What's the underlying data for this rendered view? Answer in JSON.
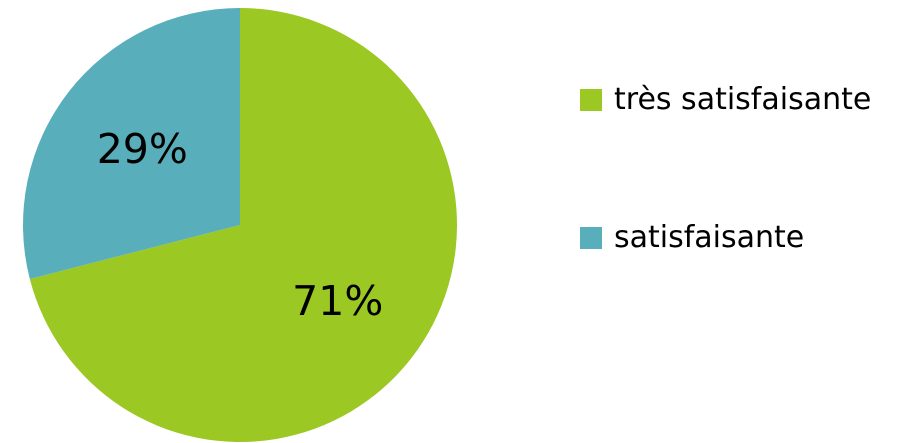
{
  "chart_data": {
    "type": "pie",
    "title": "",
    "slices": [
      {
        "name": "très satisfaisante",
        "value": 71,
        "label": "71%",
        "color": "#9BC823"
      },
      {
        "name": "satisfaisante",
        "value": 29,
        "label": "29%",
        "color": "#58AFBB"
      }
    ],
    "legend_position": "right"
  }
}
